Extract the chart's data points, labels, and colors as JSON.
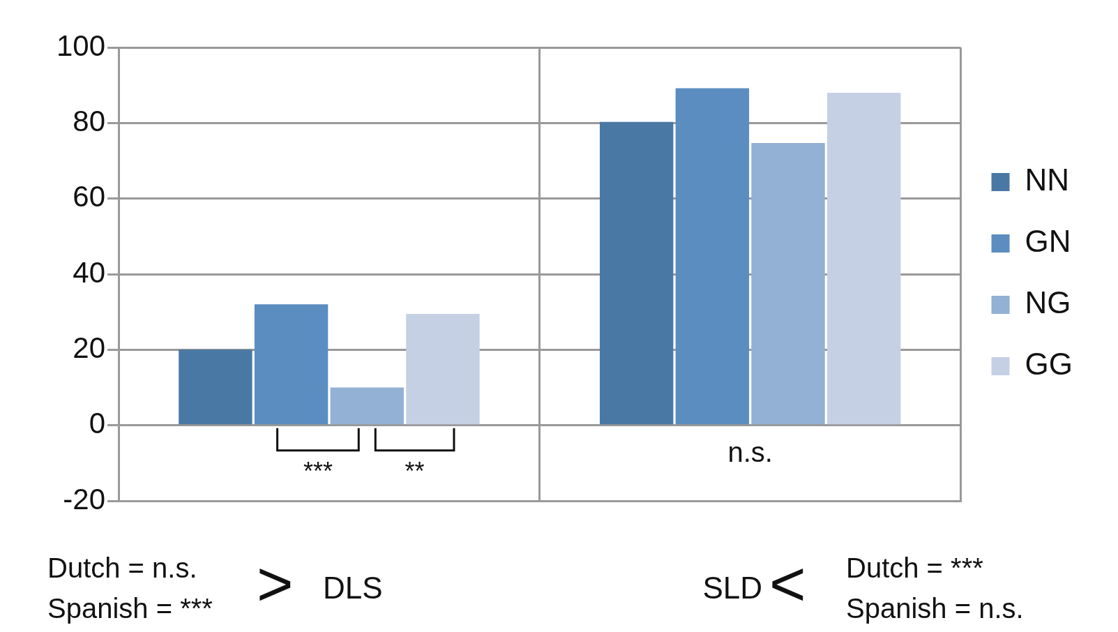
{
  "chart_data": {
    "type": "bar",
    "categories": [
      null,
      null
    ],
    "series": [
      {
        "name": "NN",
        "color": "#4a78a5",
        "values": [
          20,
          80.3
        ]
      },
      {
        "name": "GN",
        "color": "#5b8dc0",
        "values": [
          32,
          89.2
        ]
      },
      {
        "name": "NG",
        "color": "#93b0d5",
        "values": [
          10,
          74.7
        ]
      },
      {
        "name": "GG",
        "color": "#c5d0e4",
        "values": [
          29.5,
          88
        ]
      }
    ],
    "ylim": [
      -20,
      100
    ],
    "yticks": [
      -20,
      0,
      20,
      40,
      60,
      80,
      100
    ],
    "grid": true,
    "legend": "right",
    "annotations": [
      "***",
      "**",
      "n.s.",
      "Dutch = n.s.",
      "Spanish = ***",
      ">",
      "DLS",
      "SLD",
      "<",
      "Dutch = ***",
      "Spanish = n.s."
    ]
  }
}
